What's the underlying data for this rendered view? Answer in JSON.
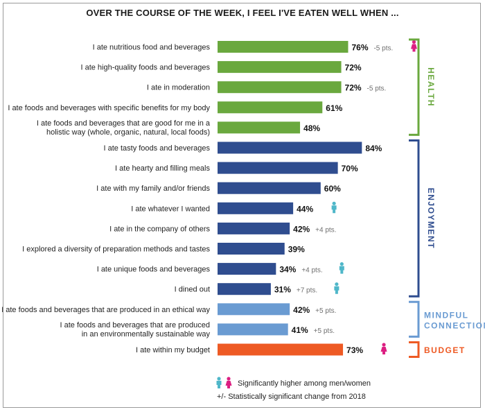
{
  "chart_data": {
    "type": "bar",
    "orientation": "horizontal",
    "title": "OVER THE COURSE OF THE WEEK, I FEEL I'VE EATEN WELL WHEN ...",
    "xlim": [
      0,
      100
    ],
    "unit": "%",
    "grid": false,
    "legend_position": "bottom",
    "colors": {
      "HEALTH": "#6aa83e",
      "ENJOYMENT": "#2f4d8f",
      "MINDFUL CONNECTION": "#6a9bd2",
      "BUDGET": "#ee5a24",
      "men": "#4fb7c9",
      "women": "#dc1f82"
    },
    "groups": [
      {
        "name": "HEALTH",
        "items": [
          {
            "label": [
              "I ate nutritious food and beverages"
            ],
            "value": 76,
            "change": "-5 pts.",
            "icon": "women"
          },
          {
            "label": [
              "I ate high-quality foods and beverages"
            ],
            "value": 72,
            "change": "",
            "icon": ""
          },
          {
            "label": [
              "I ate in moderation"
            ],
            "value": 72,
            "change": "-5 pts.",
            "icon": ""
          },
          {
            "label": [
              "I ate foods and beverages with specific benefits for my body"
            ],
            "value": 61,
            "change": "",
            "icon": ""
          },
          {
            "label": [
              "I ate foods and beverages that are good for me in a",
              "holistic way (whole, organic, natural, local foods)"
            ],
            "value": 48,
            "change": "",
            "icon": ""
          }
        ]
      },
      {
        "name": "ENJOYMENT",
        "items": [
          {
            "label": [
              "I ate tasty foods and beverages"
            ],
            "value": 84,
            "change": "",
            "icon": ""
          },
          {
            "label": [
              "I ate hearty and filling meals"
            ],
            "value": 70,
            "change": "",
            "icon": ""
          },
          {
            "label": [
              "I ate with my family and/or friends"
            ],
            "value": 60,
            "change": "",
            "icon": ""
          },
          {
            "label": [
              "I ate whatever I wanted"
            ],
            "value": 44,
            "change": "",
            "icon": "men"
          },
          {
            "label": [
              "I ate in the company of others"
            ],
            "value": 42,
            "change": "+4 pts.",
            "icon": ""
          },
          {
            "label": [
              "I explored a diversity of preparation methods and tastes"
            ],
            "value": 39,
            "change": "",
            "icon": ""
          },
          {
            "label": [
              "I ate unique foods and beverages"
            ],
            "value": 34,
            "change": "+4 pts.",
            "icon": "men"
          },
          {
            "label": [
              "I dined out"
            ],
            "value": 31,
            "change": "+7 pts.",
            "icon": "men"
          }
        ]
      },
      {
        "name": "MINDFUL CONNECTION",
        "label_lines": [
          "MINDFUL",
          "CONNECTION"
        ],
        "items": [
          {
            "label": [
              "I ate foods and beverages that are produced in an ethical way"
            ],
            "value": 42,
            "change": "+5 pts.",
            "icon": ""
          },
          {
            "label": [
              "I ate foods and beverages that are produced",
              "in an environmentally sustainable way"
            ],
            "value": 41,
            "change": "+5 pts.",
            "icon": ""
          }
        ]
      },
      {
        "name": "BUDGET",
        "items": [
          {
            "label": [
              "I ate within my budget"
            ],
            "value": 73,
            "change": "",
            "icon": "women"
          }
        ]
      }
    ],
    "legend": [
      {
        "icons": [
          "men",
          "women"
        ],
        "text": "Significantly higher among men/women"
      },
      {
        "icons": [],
        "text": "+/- Statistically significant change from 2018"
      }
    ]
  }
}
